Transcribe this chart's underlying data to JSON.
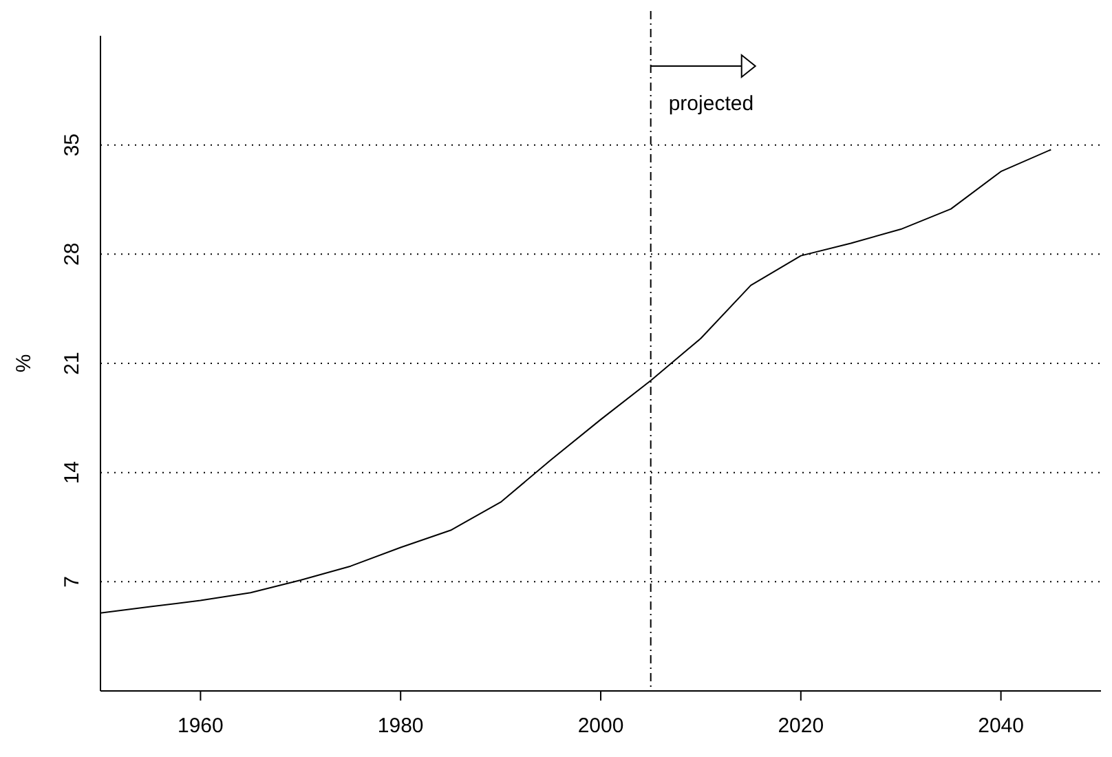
{
  "chart_data": {
    "type": "line",
    "ylabel": "%",
    "x": [
      1950,
      1955,
      1960,
      1965,
      1970,
      1975,
      1980,
      1985,
      1990,
      1995,
      2000,
      2005,
      2010,
      2015,
      2020,
      2025,
      2030,
      2035,
      2040,
      2045
    ],
    "series": [
      {
        "color": "#000000",
        "values": [
          5.0,
          5.4,
          5.8,
          6.3,
          7.1,
          8.0,
          9.2,
          10.3,
          12.1,
          14.8,
          17.4,
          19.9,
          22.6,
          26.0,
          27.9,
          28.7,
          29.6,
          30.9,
          33.3,
          34.7
        ]
      }
    ],
    "xlim": [
      1950,
      2050
    ],
    "ylim": [
      0,
      42
    ],
    "xticks": [
      1960,
      1980,
      2000,
      2020,
      2040
    ],
    "yticks": [
      7,
      14,
      21,
      28,
      35
    ],
    "grid": "y",
    "ref_lines": [
      {
        "axis": "x",
        "value": 2005,
        "label": "projected",
        "line_style": "dashdot",
        "color": "#000000"
      }
    ]
  }
}
